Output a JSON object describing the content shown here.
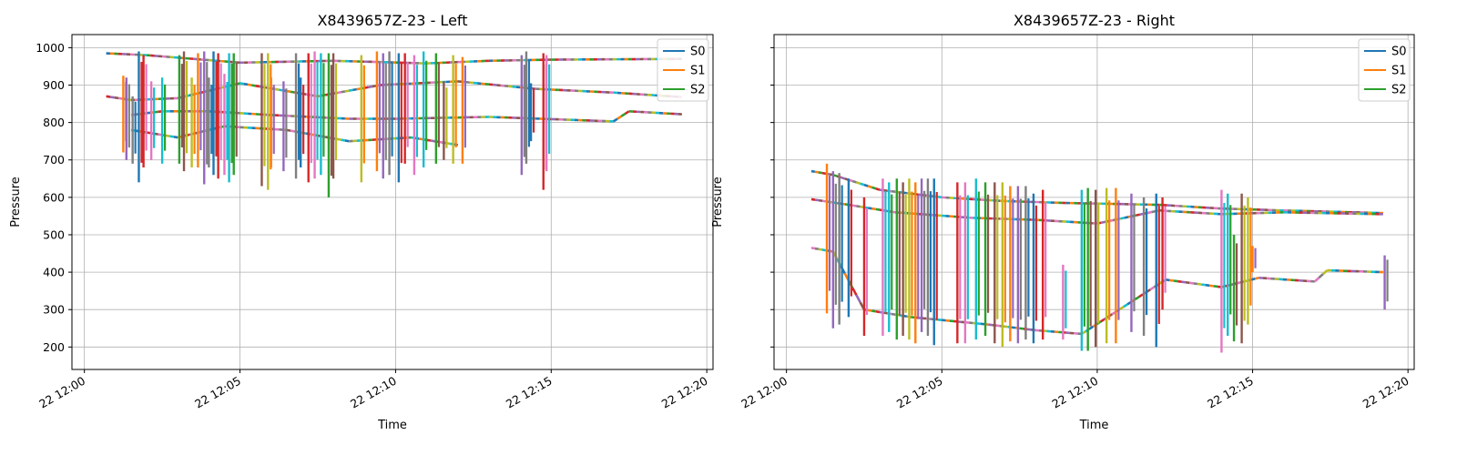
{
  "chart_data": [
    {
      "type": "line",
      "title": "X8439657Z-23 - Left",
      "xlabel": "Time",
      "ylabel": "Pressure",
      "x_ticks": [
        "22 12:00",
        "22 12:05",
        "22 12:10",
        "22 12:15",
        "22 12:20"
      ],
      "y_ticks": [
        "200",
        "300",
        "400",
        "500",
        "600",
        "700",
        "800",
        "900",
        "1000"
      ],
      "xlim_minutes": [
        -0.4,
        20.2
      ],
      "ylim": [
        140,
        1035
      ],
      "grid": true,
      "legend_position": "top-right",
      "legend": [
        {
          "label": "S0",
          "color": "#1f77b4"
        },
        {
          "label": "S1",
          "color": "#ff7f0e"
        },
        {
          "label": "S2",
          "color": "#2ca02c"
        }
      ],
      "baselines": [
        {
          "points": [
            [
              0.7,
              985
            ],
            [
              2.0,
              980
            ],
            [
              5.0,
              960
            ],
            [
              8.0,
              965
            ],
            [
              11.0,
              958
            ],
            [
              13.0,
              965
            ],
            [
              15.0,
              968
            ],
            [
              19.2,
              970
            ]
          ]
        },
        {
          "points": [
            [
              0.7,
              870
            ],
            [
              1.5,
              860
            ],
            [
              3.0,
              865
            ],
            [
              5.0,
              905
            ],
            [
              7.5,
              870
            ],
            [
              9.5,
              900
            ],
            [
              12.0,
              910
            ],
            [
              14.5,
              890
            ],
            [
              17.0,
              880
            ],
            [
              19.2,
              868
            ]
          ]
        },
        {
          "points": [
            [
              1.5,
              820
            ],
            [
              2.5,
              830
            ],
            [
              4.0,
              830
            ],
            [
              6.0,
              820
            ],
            [
              8.5,
              810
            ],
            [
              10.0,
              810
            ],
            [
              13.0,
              815
            ],
            [
              17.0,
              803
            ],
            [
              17.5,
              830
            ],
            [
              19.2,
              822
            ]
          ]
        },
        {
          "points": [
            [
              1.5,
              780
            ],
            [
              3.0,
              760
            ],
            [
              4.5,
              790
            ],
            [
              6.5,
              780
            ],
            [
              8.5,
              750
            ],
            [
              10.5,
              760
            ],
            [
              12.0,
              740
            ]
          ]
        }
      ],
      "spikes": [
        {
          "t": 1.25,
          "lo": 720,
          "hi": 925
        },
        {
          "t": 1.35,
          "lo": 700,
          "hi": 920
        },
        {
          "t": 1.55,
          "lo": 690,
          "hi": 870
        },
        {
          "t": 1.75,
          "lo": 640,
          "hi": 990
        },
        {
          "t": 1.9,
          "lo": 680,
          "hi": 980
        },
        {
          "t": 2.15,
          "lo": 700,
          "hi": 910
        },
        {
          "t": 2.5,
          "lo": 690,
          "hi": 920
        },
        {
          "t": 3.05,
          "lo": 690,
          "hi": 980
        },
        {
          "t": 3.2,
          "lo": 670,
          "hi": 990
        },
        {
          "t": 3.45,
          "lo": 680,
          "hi": 920
        },
        {
          "t": 3.65,
          "lo": 680,
          "hi": 985
        },
        {
          "t": 3.85,
          "lo": 635,
          "hi": 990
        },
        {
          "t": 4.0,
          "lo": 680,
          "hi": 920
        },
        {
          "t": 4.15,
          "lo": 660,
          "hi": 990
        },
        {
          "t": 4.3,
          "lo": 650,
          "hi": 985
        },
        {
          "t": 4.5,
          "lo": 660,
          "hi": 930
        },
        {
          "t": 4.65,
          "lo": 640,
          "hi": 985
        },
        {
          "t": 4.8,
          "lo": 660,
          "hi": 985
        },
        {
          "t": 5.7,
          "lo": 630,
          "hi": 985
        },
        {
          "t": 5.9,
          "lo": 620,
          "hi": 985
        },
        {
          "t": 6.0,
          "lo": 680,
          "hi": 920
        },
        {
          "t": 6.4,
          "lo": 670,
          "hi": 910
        },
        {
          "t": 6.8,
          "lo": 650,
          "hi": 985
        },
        {
          "t": 6.95,
          "lo": 680,
          "hi": 920
        },
        {
          "t": 7.2,
          "lo": 640,
          "hi": 985
        },
        {
          "t": 7.4,
          "lo": 650,
          "hi": 990
        },
        {
          "t": 7.6,
          "lo": 660,
          "hi": 985
        },
        {
          "t": 7.85,
          "lo": 600,
          "hi": 985
        },
        {
          "t": 8.0,
          "lo": 650,
          "hi": 985
        },
        {
          "t": 8.9,
          "lo": 640,
          "hi": 980
        },
        {
          "t": 9.4,
          "lo": 670,
          "hi": 990
        },
        {
          "t": 9.6,
          "lo": 650,
          "hi": 985
        },
        {
          "t": 9.8,
          "lo": 660,
          "hi": 990
        },
        {
          "t": 10.1,
          "lo": 640,
          "hi": 985
        },
        {
          "t": 10.3,
          "lo": 690,
          "hi": 985
        },
        {
          "t": 10.6,
          "lo": 660,
          "hi": 980
        },
        {
          "t": 10.9,
          "lo": 680,
          "hi": 990
        },
        {
          "t": 11.3,
          "lo": 690,
          "hi": 985
        },
        {
          "t": 11.55,
          "lo": 700,
          "hi": 910
        },
        {
          "t": 11.85,
          "lo": 690,
          "hi": 980
        },
        {
          "t": 12.15,
          "lo": 690,
          "hi": 975
        },
        {
          "t": 14.05,
          "lo": 660,
          "hi": 980
        },
        {
          "t": 14.2,
          "lo": 690,
          "hi": 990
        },
        {
          "t": 14.35,
          "lo": 750,
          "hi": 905
        },
        {
          "t": 14.75,
          "lo": 620,
          "hi": 985
        },
        {
          "t": 14.85,
          "lo": 670,
          "hi": 980
        }
      ]
    },
    {
      "type": "line",
      "title": "X8439657Z-23 - Right",
      "xlabel": "Time",
      "ylabel": "Pressure",
      "x_ticks": [
        "22 12:00",
        "22 12:05",
        "22 12:10",
        "22 12:15",
        "22 12:20"
      ],
      "xlim_minutes": [
        -0.4,
        20.2
      ],
      "ylim": [
        140,
        1035
      ],
      "grid": true,
      "legend_position": "top-right",
      "legend": [
        {
          "label": "S0",
          "color": "#1f77b4"
        },
        {
          "label": "S1",
          "color": "#ff7f0e"
        },
        {
          "label": "S2",
          "color": "#2ca02c"
        }
      ],
      "baselines": [
        {
          "points": [
            [
              0.8,
              670
            ],
            [
              1.5,
              660
            ],
            [
              3.0,
              620
            ],
            [
              5.0,
              600
            ],
            [
              7.0,
              590
            ],
            [
              9.0,
              585
            ],
            [
              12.0,
              580
            ],
            [
              14.0,
              570
            ],
            [
              16.0,
              565
            ],
            [
              19.2,
              558
            ]
          ]
        },
        {
          "points": [
            [
              0.8,
              595
            ],
            [
              2.0,
              580
            ],
            [
              3.5,
              560
            ],
            [
              6.0,
              545
            ],
            [
              8.0,
              540
            ],
            [
              10.0,
              530
            ],
            [
              12.0,
              565
            ],
            [
              14.0,
              555
            ],
            [
              16.0,
              560
            ],
            [
              19.2,
              555
            ]
          ]
        },
        {
          "points": [
            [
              0.8,
              465
            ],
            [
              1.5,
              455
            ],
            [
              2.5,
              300
            ],
            [
              4.0,
              280
            ],
            [
              6.5,
              260
            ],
            [
              8.0,
              245
            ],
            [
              9.5,
              235
            ],
            [
              12.2,
              380
            ],
            [
              14.0,
              360
            ],
            [
              15.2,
              385
            ],
            [
              17.0,
              375
            ],
            [
              17.4,
              405
            ],
            [
              19.2,
              400
            ]
          ]
        }
      ],
      "spikes": [
        {
          "t": 1.3,
          "lo": 290,
          "hi": 690
        },
        {
          "t": 1.5,
          "lo": 250,
          "hi": 670
        },
        {
          "t": 1.7,
          "lo": 260,
          "hi": 665
        },
        {
          "t": 2.0,
          "lo": 280,
          "hi": 650
        },
        {
          "t": 2.5,
          "lo": 230,
          "hi": 600
        },
        {
          "t": 3.1,
          "lo": 230,
          "hi": 650
        },
        {
          "t": 3.3,
          "lo": 240,
          "hi": 640
        },
        {
          "t": 3.55,
          "lo": 220,
          "hi": 650
        },
        {
          "t": 3.75,
          "lo": 230,
          "hi": 640
        },
        {
          "t": 3.95,
          "lo": 220,
          "hi": 650
        },
        {
          "t": 4.15,
          "lo": 210,
          "hi": 640
        },
        {
          "t": 4.35,
          "lo": 240,
          "hi": 650
        },
        {
          "t": 4.55,
          "lo": 230,
          "hi": 650
        },
        {
          "t": 4.75,
          "lo": 205,
          "hi": 650
        },
        {
          "t": 5.5,
          "lo": 210,
          "hi": 640
        },
        {
          "t": 5.75,
          "lo": 210,
          "hi": 640
        },
        {
          "t": 6.1,
          "lo": 220,
          "hi": 650
        },
        {
          "t": 6.4,
          "lo": 230,
          "hi": 640
        },
        {
          "t": 6.7,
          "lo": 210,
          "hi": 640
        },
        {
          "t": 6.95,
          "lo": 200,
          "hi": 640
        },
        {
          "t": 7.2,
          "lo": 215,
          "hi": 630
        },
        {
          "t": 7.45,
          "lo": 210,
          "hi": 630
        },
        {
          "t": 7.7,
          "lo": 220,
          "hi": 630
        },
        {
          "t": 7.95,
          "lo": 210,
          "hi": 610
        },
        {
          "t": 8.25,
          "lo": 220,
          "hi": 620
        },
        {
          "t": 8.9,
          "lo": 220,
          "hi": 420
        },
        {
          "t": 9.5,
          "lo": 190,
          "hi": 620
        },
        {
          "t": 9.7,
          "lo": 190,
          "hi": 625
        },
        {
          "t": 9.95,
          "lo": 200,
          "hi": 620
        },
        {
          "t": 10.3,
          "lo": 210,
          "hi": 625
        },
        {
          "t": 10.6,
          "lo": 210,
          "hi": 625
        },
        {
          "t": 11.1,
          "lo": 240,
          "hi": 610
        },
        {
          "t": 11.5,
          "lo": 230,
          "hi": 600
        },
        {
          "t": 11.9,
          "lo": 200,
          "hi": 610
        },
        {
          "t": 12.1,
          "lo": 300,
          "hi": 600
        },
        {
          "t": 14.0,
          "lo": 185,
          "hi": 620
        },
        {
          "t": 14.2,
          "lo": 230,
          "hi": 610
        },
        {
          "t": 14.4,
          "lo": 215,
          "hi": 500
        },
        {
          "t": 14.65,
          "lo": 210,
          "hi": 610
        },
        {
          "t": 14.85,
          "lo": 260,
          "hi": 600
        },
        {
          "t": 15.0,
          "lo": 400,
          "hi": 470
        },
        {
          "t": 19.25,
          "lo": 300,
          "hi": 445
        }
      ]
    }
  ],
  "palette": [
    "#1f77b4",
    "#ff7f0e",
    "#2ca02c",
    "#d62728",
    "#9467bd",
    "#8c564b",
    "#e377c2",
    "#7f7f7f",
    "#bcbd22",
    "#17becf"
  ]
}
